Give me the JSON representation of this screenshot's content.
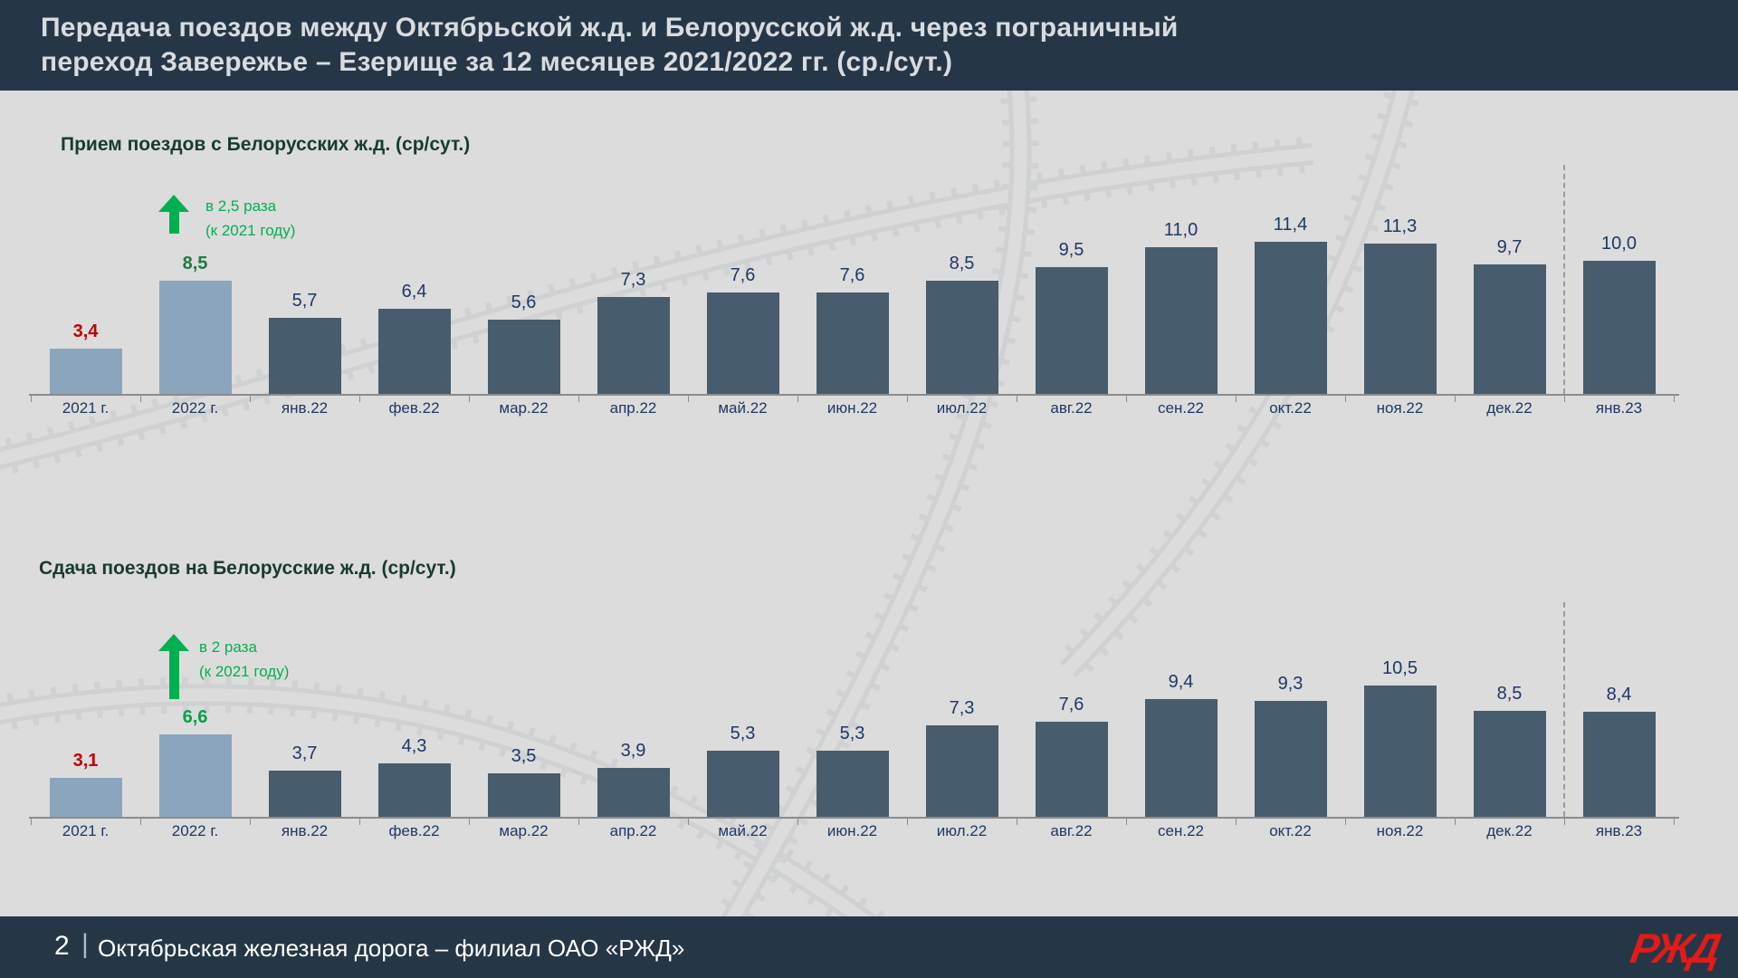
{
  "header": {
    "title_line1": "Передача поездов между Октябрьской ж.д. и Белорусской ж.д. через пограничный",
    "title_line2": "переход Завережье – Езерище за 12 месяцев 2021/2022 гг. (ср./сут.)"
  },
  "footer": {
    "page_number": "2",
    "separator": "|",
    "organization": "Октябрьская железная дорога – филиал ОАО «РЖД»",
    "logo_text": "РЖД"
  },
  "colors": {
    "header_bg": "#253746",
    "body_bg": "#dcdcdc",
    "bar_dark": "#475c6c",
    "bar_light": "#8ba5bc",
    "value_navy": "#1f3864",
    "value_red": "#c00000",
    "value_green_chart1": "#1e7b3e",
    "value_green_chart2": "#00a14b",
    "accent_green": "#00b050",
    "chart_title_green": "#193b2d",
    "axis_gray": "#8c8c8c",
    "logo_red": "#e21a1a"
  },
  "chart_data": [
    {
      "type": "bar",
      "title": "Прием поездов с Белорусских ж.д.  (ср/сут.)",
      "annotation": {
        "line1": "в 2,5 раза",
        "line2": "(к 2021 году)"
      },
      "categories": [
        "2021 г.",
        "2022 г.",
        "янв.22",
        "фев.22",
        "мар.22",
        "апр.22",
        "май.22",
        "июн.22",
        "июл.22",
        "авг.22",
        "сен.22",
        "окт.22",
        "ноя.22",
        "дек.22",
        "янв.23"
      ],
      "values": [
        3.4,
        8.5,
        5.7,
        6.4,
        5.6,
        7.3,
        7.6,
        7.6,
        8.5,
        9.5,
        11.0,
        11.4,
        11.3,
        9.7,
        10.0
      ],
      "value_labels": [
        "3,4",
        "8,5",
        "5,7",
        "6,4",
        "5,6",
        "7,3",
        "7,6",
        "7,6",
        "8,5",
        "9,5",
        "11,0",
        "11,4",
        "11,3",
        "9,7",
        "10,0"
      ],
      "value_label_colors": [
        "#c00000",
        "#1e7b3e",
        "#1f3864",
        "#1f3864",
        "#1f3864",
        "#1f3864",
        "#1f3864",
        "#1f3864",
        "#1f3864",
        "#1f3864",
        "#1f3864",
        "#1f3864",
        "#1f3864",
        "#1f3864",
        "#1f3864"
      ],
      "value_label_bold": [
        true,
        true,
        false,
        false,
        false,
        false,
        false,
        false,
        false,
        false,
        false,
        false,
        false,
        false,
        false
      ],
      "bar_colors": [
        "#8ba5bc",
        "#8ba5bc",
        "#475c6c",
        "#475c6c",
        "#475c6c",
        "#475c6c",
        "#475c6c",
        "#475c6c",
        "#475c6c",
        "#475c6c",
        "#475c6c",
        "#475c6c",
        "#475c6c",
        "#475c6c",
        "#475c6c"
      ],
      "separator_before_index": 14,
      "ylim": [
        0,
        12
      ],
      "grid": false,
      "legend": "none"
    },
    {
      "type": "bar",
      "title": "Сдача поездов на Белорусские ж.д. (ср/сут.)",
      "annotation": {
        "line1": "в 2 раза",
        "line2": "(к 2021 году)"
      },
      "categories": [
        "2021 г.",
        "2022 г.",
        "янв.22",
        "фев.22",
        "мар.22",
        "апр.22",
        "май.22",
        "июн.22",
        "июл.22",
        "авг.22",
        "сен.22",
        "окт.22",
        "ноя.22",
        "дек.22",
        "янв.23"
      ],
      "values": [
        3.1,
        6.6,
        3.7,
        4.3,
        3.5,
        3.9,
        5.3,
        5.3,
        7.3,
        7.6,
        9.4,
        9.3,
        10.5,
        8.5,
        8.4
      ],
      "value_labels": [
        "3,1",
        "6,6",
        "3,7",
        "4,3",
        "3,5",
        "3,9",
        "5,3",
        "5,3",
        "7,3",
        "7,6",
        "9,4",
        "9,3",
        "10,5",
        "8,5",
        "8,4"
      ],
      "value_label_colors": [
        "#c00000",
        "#00a14b",
        "#1f3864",
        "#1f3864",
        "#1f3864",
        "#1f3864",
        "#1f3864",
        "#1f3864",
        "#1f3864",
        "#1f3864",
        "#1f3864",
        "#1f3864",
        "#1f3864",
        "#1f3864",
        "#1f3864"
      ],
      "value_label_bold": [
        true,
        true,
        false,
        false,
        false,
        false,
        false,
        false,
        false,
        false,
        false,
        false,
        false,
        false,
        false
      ],
      "bar_colors": [
        "#8ba5bc",
        "#8ba5bc",
        "#475c6c",
        "#475c6c",
        "#475c6c",
        "#475c6c",
        "#475c6c",
        "#475c6c",
        "#475c6c",
        "#475c6c",
        "#475c6c",
        "#475c6c",
        "#475c6c",
        "#475c6c",
        "#475c6c"
      ],
      "separator_before_index": 14,
      "ylim": [
        0,
        12
      ],
      "grid": false,
      "legend": "none"
    }
  ]
}
